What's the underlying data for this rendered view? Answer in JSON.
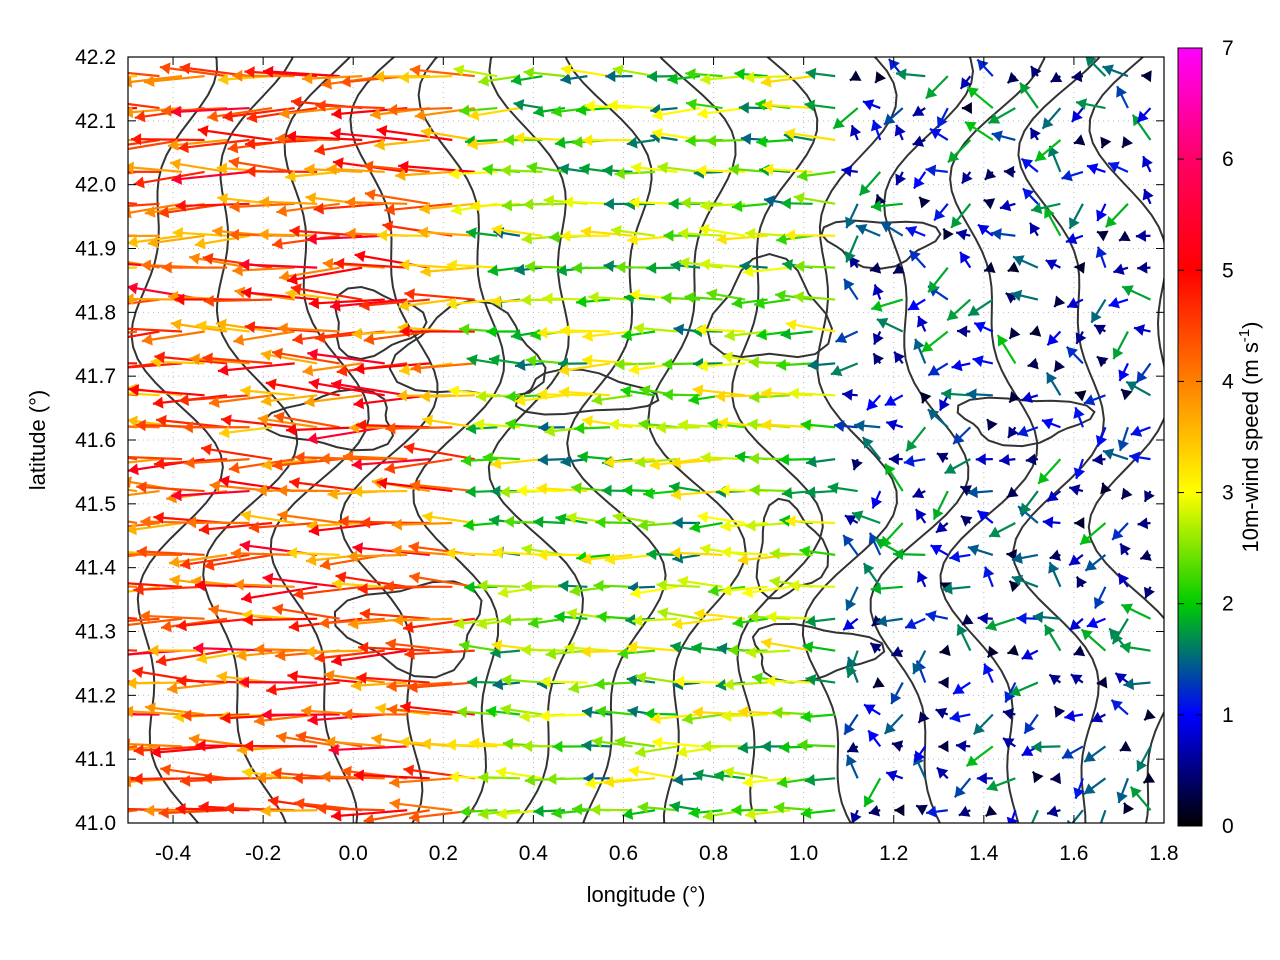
{
  "chart_data": {
    "type": "vector-field",
    "xlabel": "longitude (°)",
    "ylabel": "latitude (°)",
    "xlim": [
      -0.5,
      1.8
    ],
    "ylim": [
      41.0,
      42.2
    ],
    "xticks": [
      {
        "value": -0.4,
        "label": "-0.4"
      },
      {
        "value": -0.2,
        "label": "-0.2"
      },
      {
        "value": 0.0,
        "label": "0.0"
      },
      {
        "value": 0.2,
        "label": "0.2"
      },
      {
        "value": 0.4,
        "label": "0.4"
      },
      {
        "value": 0.6,
        "label": "0.6"
      },
      {
        "value": 0.8,
        "label": "0.8"
      },
      {
        "value": 1.0,
        "label": "1.0"
      },
      {
        "value": 1.2,
        "label": "1.2"
      },
      {
        "value": 1.4,
        "label": "1.4"
      },
      {
        "value": 1.6,
        "label": "1.6"
      },
      {
        "value": 1.8,
        "label": "1.8"
      }
    ],
    "yticks": [
      {
        "value": 41.0,
        "label": "41.0"
      },
      {
        "value": 41.1,
        "label": "41.1"
      },
      {
        "value": 41.2,
        "label": "41.2"
      },
      {
        "value": 41.3,
        "label": "41.3"
      },
      {
        "value": 41.4,
        "label": "41.4"
      },
      {
        "value": 41.5,
        "label": "41.5"
      },
      {
        "value": 41.6,
        "label": "41.6"
      },
      {
        "value": 41.7,
        "label": "41.7"
      },
      {
        "value": 41.8,
        "label": "41.8"
      },
      {
        "value": 41.9,
        "label": "41.9"
      },
      {
        "value": 42.0,
        "label": "42.0"
      },
      {
        "value": 42.1,
        "label": "42.1"
      },
      {
        "value": 42.2,
        "label": "42.2"
      }
    ],
    "grid": true,
    "colorbar": {
      "label": "10m-wind speed (m s",
      "label_sup": "-1",
      "label_end": ")",
      "range": [
        0,
        7
      ],
      "ticks": [
        {
          "value": 0,
          "label": "0"
        },
        {
          "value": 1,
          "label": "1"
        },
        {
          "value": 2,
          "label": "2"
        },
        {
          "value": 3,
          "label": "3"
        },
        {
          "value": 4,
          "label": "4"
        },
        {
          "value": 5,
          "label": "5"
        },
        {
          "value": 6,
          "label": "6"
        },
        {
          "value": 7,
          "label": "7"
        }
      ],
      "colors": [
        "#000000",
        "#0000ff",
        "#00cc00",
        "#ffff00",
        "#ff8000",
        "#ff0000",
        "#ff00ff"
      ]
    },
    "contour_color": "#333333",
    "wind_field_description_regions": [
      {
        "lon": [
          -0.5,
          0.3
        ],
        "lat": [
          41.0,
          42.2
        ],
        "speed": 5.0,
        "direction": "westward"
      },
      {
        "lon": [
          0.3,
          1.1
        ],
        "lat": [
          41.0,
          42.2
        ],
        "speed": 2.8,
        "direction": "westward"
      },
      {
        "lon": [
          1.1,
          1.8
        ],
        "lat": [
          41.0,
          42.2
        ],
        "speed": 1.2,
        "direction": "mixed"
      }
    ]
  }
}
